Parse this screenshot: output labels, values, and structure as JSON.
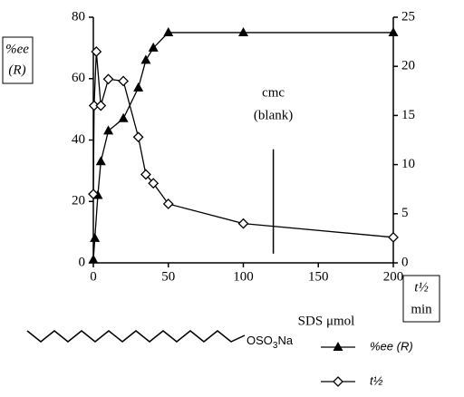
{
  "chart_data": {
    "type": "line",
    "x_label": "SDS  μmol",
    "y_label": [
      "%ee",
      "(R)"
    ],
    "y2_label": [
      "t½",
      "min"
    ],
    "xlim": [
      0,
      200
    ],
    "xticks": [
      0,
      50,
      100,
      150,
      200
    ],
    "ylim": [
      0,
      80
    ],
    "yticks": [
      0,
      20,
      40,
      60,
      80
    ],
    "y2lim": [
      0,
      25
    ],
    "y2ticks": [
      0,
      5,
      10,
      15,
      20,
      25
    ],
    "grid": false,
    "series": [
      {
        "name": "%ee (R)",
        "color": "#000000",
        "marker": "triangle",
        "x": [
          0,
          1,
          3,
          5,
          10,
          20,
          30,
          35,
          40,
          50,
          100,
          200
        ],
        "values": [
          1,
          8,
          22,
          33,
          43,
          47,
          57,
          66,
          70,
          75,
          75,
          75
        ]
      },
      {
        "name": "t½",
        "color": "#000000",
        "marker": "diamond",
        "axis": "y2",
        "x": [
          0,
          0.5,
          2,
          5,
          10,
          20,
          30,
          35,
          40,
          50,
          100,
          200
        ],
        "values": [
          7,
          16,
          21.5,
          16,
          18.7,
          18.5,
          12.8,
          9,
          8.1,
          6,
          4,
          2.6
        ]
      }
    ],
    "annotation": {
      "text": [
        "cmc",
        "(blank)"
      ],
      "x": 120,
      "y": [
        3,
        37
      ]
    },
    "structure_label": [
      "OSO",
      "3",
      "Na"
    ]
  }
}
